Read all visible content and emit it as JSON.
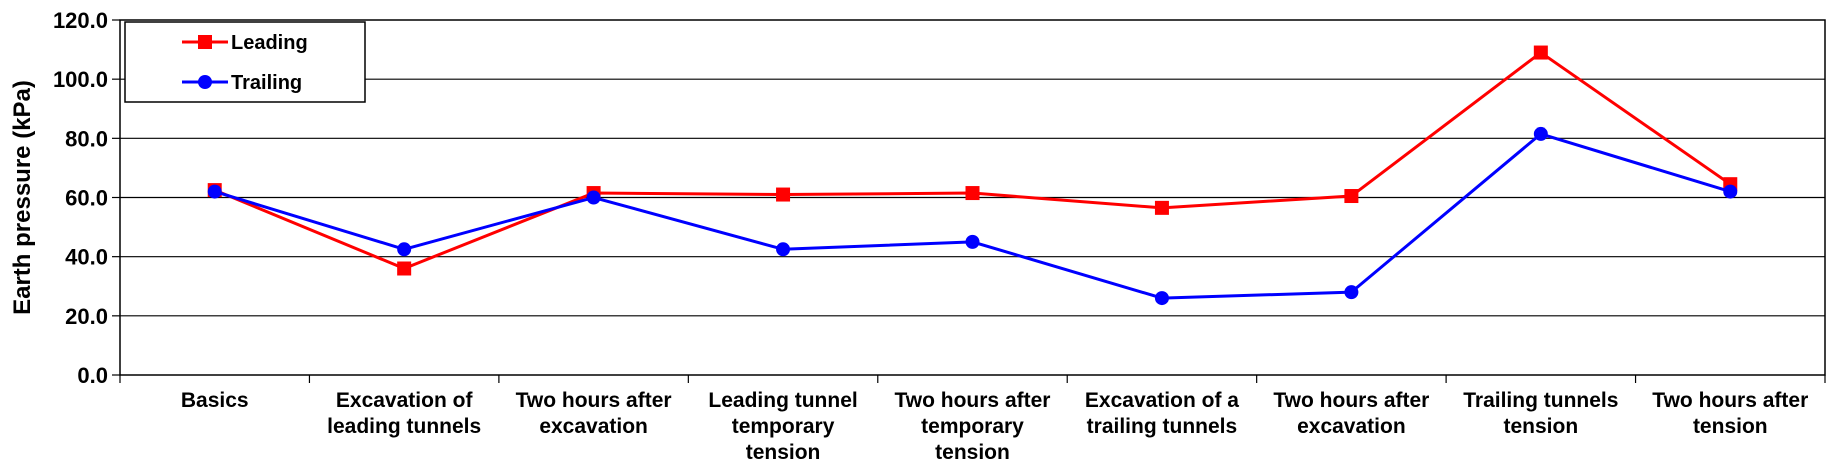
{
  "chart_data": {
    "type": "line",
    "title": "",
    "xlabel": "",
    "ylabel": "Earth pressure (kPa)",
    "ylim": [
      0,
      120
    ],
    "yticks": [
      "0.0",
      "20.0",
      "40.0",
      "60.0",
      "80.0",
      "100.0",
      "120.0"
    ],
    "grid": "horizontal",
    "legend_position": "top-left",
    "categories": [
      [
        "Basics"
      ],
      [
        "Excavation of",
        "leading tunnels"
      ],
      [
        "Two hours after",
        "excavation"
      ],
      [
        "Leading tunnel",
        "temporary",
        "tension"
      ],
      [
        "Two hours after",
        "temporary",
        "tension"
      ],
      [
        "Excavation of a",
        "trailing tunnels"
      ],
      [
        "Two hours after",
        "excavation"
      ],
      [
        "Trailing tunnels",
        "tension"
      ],
      [
        "Two hours after",
        "tension"
      ]
    ],
    "series": [
      {
        "name": "Leading",
        "color": "#ff0000",
        "marker": "square",
        "values": [
          62.5,
          36.0,
          61.5,
          61.0,
          61.5,
          56.5,
          60.5,
          109.0,
          64.5
        ]
      },
      {
        "name": "Trailing",
        "color": "#0000ff",
        "marker": "circle",
        "values": [
          62.0,
          42.5,
          60.0,
          42.5,
          45.0,
          26.0,
          28.0,
          81.5,
          62.0
        ]
      }
    ]
  }
}
